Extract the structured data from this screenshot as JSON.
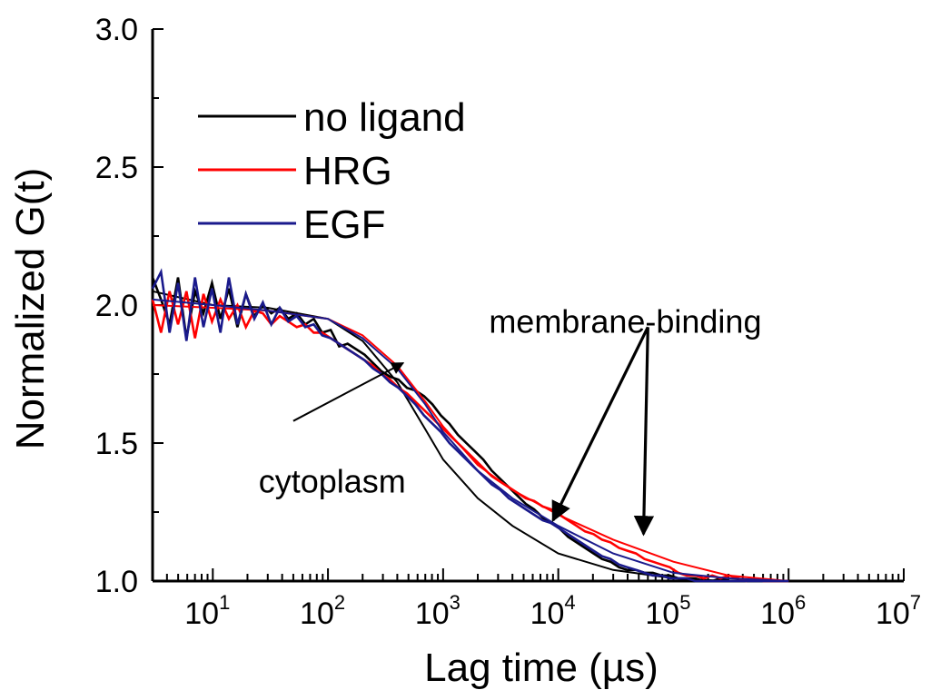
{
  "chart_data": {
    "type": "line",
    "title": "",
    "xlabel": "Lag time (µs)",
    "ylabel": "Normalized G(t)",
    "xscale": "log",
    "xlim": [
      3,
      10000000
    ],
    "ylim": [
      1.0,
      3.0
    ],
    "grid": false,
    "legend_position": "top-left",
    "x_ticks": [
      {
        "base": "10",
        "exp": "1",
        "value": 10
      },
      {
        "base": "10",
        "exp": "2",
        "value": 100
      },
      {
        "base": "10",
        "exp": "3",
        "value": 1000
      },
      {
        "base": "10",
        "exp": "4",
        "value": 10000
      },
      {
        "base": "10",
        "exp": "5",
        "value": 100000
      },
      {
        "base": "10",
        "exp": "6",
        "value": 1000000
      },
      {
        "base": "10",
        "exp": "7",
        "value": 10000000
      }
    ],
    "y_ticks": [
      {
        "label": "1.0",
        "value": 1.0
      },
      {
        "label": "1.5",
        "value": 1.5
      },
      {
        "label": "2.0",
        "value": 2.0
      },
      {
        "label": "2.5",
        "value": 2.5
      },
      {
        "label": "3.0",
        "value": 3.0
      }
    ],
    "series": [
      {
        "name": "no ligand",
        "color": "#000000",
        "x": [
          3,
          10,
          30,
          100,
          200,
          400,
          700,
          1000,
          2000,
          4000,
          10000,
          30000,
          100000,
          300000,
          1000000
        ],
        "y": [
          2.05,
          2.0,
          1.99,
          1.95,
          1.87,
          1.72,
          1.55,
          1.44,
          1.3,
          1.2,
          1.1,
          1.04,
          1.01,
          1.0,
          1.0
        ],
        "noisy_y": [
          2.1,
          2.02,
          1.93,
          2.1,
          1.88,
          2.05,
          1.97,
          2.08,
          1.95,
          2.06,
          1.92,
          2.04,
          1.96,
          2.0,
          1.97,
          1.99,
          1.95,
          1.97,
          1.93,
          1.95,
          1.9,
          1.91,
          1.85,
          1.86,
          1.84,
          1.82,
          1.79,
          1.76,
          1.74,
          1.73,
          1.7,
          1.69,
          1.67,
          1.64,
          1.6,
          1.57,
          1.53,
          1.5,
          1.47,
          1.44,
          1.4,
          1.37,
          1.34,
          1.31,
          1.28,
          1.26,
          1.23,
          1.21,
          1.19,
          1.16,
          1.14,
          1.12,
          1.1,
          1.08,
          1.07,
          1.05,
          1.04,
          1.04,
          1.03,
          1.03,
          1.02,
          1.02,
          1.01,
          1.01,
          1.01,
          1.0,
          1.0,
          1.01,
          1.0,
          1.0,
          1.0,
          1.0,
          1.0,
          1.0,
          1.0,
          1.0
        ]
      },
      {
        "name": "HRG",
        "color": "#ff0000",
        "x": [
          3,
          10,
          30,
          100,
          200,
          400,
          700,
          1000,
          2000,
          4000,
          10000,
          30000,
          100000,
          300000,
          1000000
        ],
        "y": [
          2.0,
          1.99,
          1.98,
          1.95,
          1.89,
          1.78,
          1.65,
          1.56,
          1.42,
          1.33,
          1.24,
          1.15,
          1.07,
          1.02,
          1.0
        ],
        "noisy_y": [
          2.02,
          1.9,
          2.05,
          1.93,
          2.05,
          1.88,
          2.04,
          1.94,
          2.02,
          1.95,
          2.0,
          1.92,
          1.98,
          1.97,
          1.93,
          1.96,
          1.94,
          1.92,
          1.93,
          1.9,
          1.9,
          1.88,
          1.86,
          1.84,
          1.82,
          1.8,
          1.78,
          1.75,
          1.73,
          1.7,
          1.68,
          1.65,
          1.62,
          1.59,
          1.56,
          1.53,
          1.5,
          1.47,
          1.44,
          1.41,
          1.38,
          1.36,
          1.34,
          1.32,
          1.3,
          1.29,
          1.27,
          1.26,
          1.24,
          1.22,
          1.2,
          1.18,
          1.17,
          1.15,
          1.14,
          1.12,
          1.11,
          1.1,
          1.08,
          1.07,
          1.06,
          1.05,
          1.03,
          1.02,
          1.02,
          1.01,
          1.02,
          1.01,
          1.02,
          1.01,
          1.0,
          1.01,
          1.0,
          1.0,
          1.0,
          1.0
        ]
      },
      {
        "name": "EGF",
        "color": "#1a1a8c",
        "x": [
          3,
          10,
          30,
          100,
          200,
          400,
          700,
          1000,
          2000,
          4000,
          10000,
          30000,
          100000,
          300000,
          1000000
        ],
        "y": [
          2.02,
          2.0,
          1.98,
          1.95,
          1.88,
          1.77,
          1.64,
          1.54,
          1.4,
          1.3,
          1.2,
          1.1,
          1.03,
          1.01,
          1.0
        ],
        "noisy_y": [
          2.06,
          2.12,
          1.9,
          2.08,
          1.87,
          2.1,
          1.92,
          2.06,
          1.9,
          2.1,
          1.93,
          2.04,
          1.95,
          2.01,
          1.93,
          1.99,
          1.94,
          1.96,
          1.92,
          1.93,
          1.89,
          1.88,
          1.86,
          1.84,
          1.82,
          1.8,
          1.77,
          1.75,
          1.72,
          1.7,
          1.67,
          1.64,
          1.6,
          1.57,
          1.54,
          1.5,
          1.47,
          1.44,
          1.41,
          1.38,
          1.35,
          1.33,
          1.3,
          1.28,
          1.26,
          1.24,
          1.22,
          1.21,
          1.19,
          1.17,
          1.15,
          1.13,
          1.11,
          1.09,
          1.08,
          1.06,
          1.05,
          1.04,
          1.03,
          1.02,
          1.02,
          1.01,
          1.01,
          1.01,
          1.0,
          1.0,
          1.0,
          1.0,
          1.0,
          1.0,
          1.0,
          1.0,
          1.0,
          1.0,
          1.0,
          1.0
        ]
      }
    ],
    "annotations": [
      {
        "text": "cytoplasm",
        "anchor": {
          "x": 25,
          "y": 1.32
        },
        "arrows": [
          {
            "from": {
              "x": 50,
              "y": 1.58
            },
            "to": {
              "x": 450,
              "y": 1.79
            }
          }
        ]
      },
      {
        "text": "membrane-binding",
        "anchor": {
          "x": 2500,
          "y": 1.9
        },
        "arrows": [
          {
            "from": {
              "x": 60000,
              "y": 1.92
            },
            "to": {
              "x": 9000,
              "y": 1.22
            }
          },
          {
            "from": {
              "x": 60000,
              "y": 1.92
            },
            "to": {
              "x": 55000,
              "y": 1.17
            }
          }
        ]
      }
    ]
  }
}
